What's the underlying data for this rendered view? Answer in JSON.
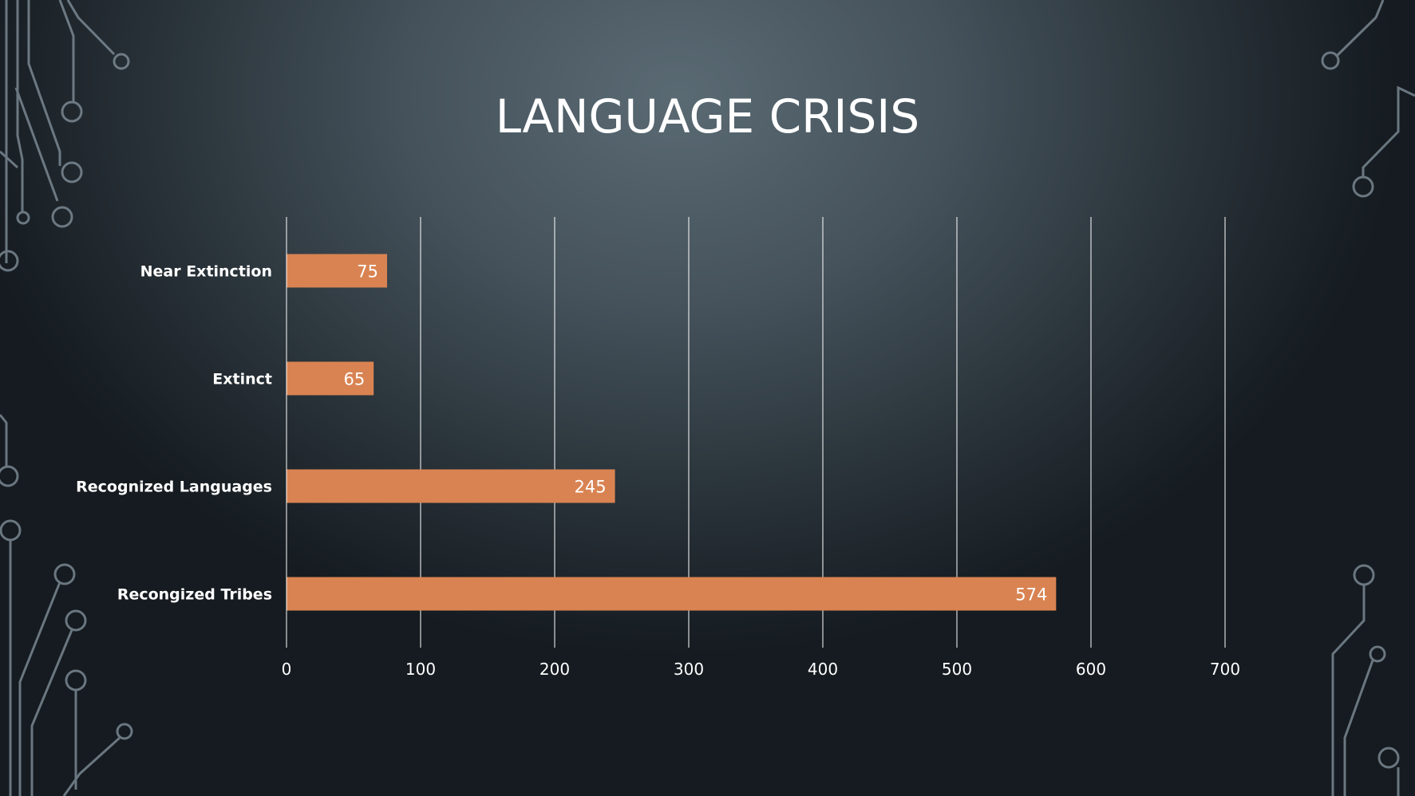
{
  "slide": {
    "title": "LANGUAGE CRISIS"
  },
  "colors": {
    "bar": "#d98352",
    "gridline": "#ffffff",
    "text": "#ffffff"
  },
  "chart_data": {
    "type": "bar",
    "orientation": "horizontal",
    "title": "",
    "xlabel": "",
    "ylabel": "",
    "categories": [
      "Near Extinction",
      "Extinct",
      "Recognized Languages",
      "Recongized Tribes"
    ],
    "values": [
      75,
      65,
      245,
      574
    ],
    "xlim": [
      0,
      700
    ],
    "ticks": [
      0,
      100,
      200,
      300,
      400,
      500,
      600,
      700
    ],
    "grid": "vertical",
    "data_labels": true,
    "legend": "none"
  }
}
